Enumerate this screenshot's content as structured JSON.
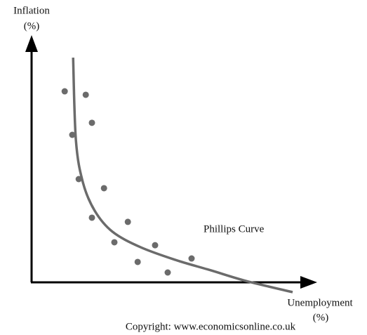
{
  "chart_data": {
    "type": "scatter",
    "x_label": [
      "Unemployment",
      "(%)"
    ],
    "y_label": [
      "Inflation",
      "(%)"
    ],
    "xlim": [
      0,
      100
    ],
    "ylim": [
      0,
      100
    ],
    "points": {
      "color": "#6b6b6b",
      "x": [
        11.8,
        19.3,
        21.5,
        14.5,
        16.8,
        25.8,
        21.5,
        34.3,
        29.5,
        44.0,
        37.8,
        57.0,
        48.5
      ],
      "values": [
        77.7,
        76.3,
        64.9,
        60.0,
        42.0,
        38.3,
        26.3,
        24.6,
        16.3,
        15.1,
        8.3,
        9.7,
        4.0
      ]
    },
    "curve": {
      "name": "Phillips Curve",
      "color": "#6b6b6b",
      "x": [
        14.8,
        15.8,
        18.3,
        22.5,
        28.8,
        38.8,
        51.3,
        63.8,
        76.3,
        93.0
      ],
      "values": [
        91.4,
        57.7,
        40.6,
        29.1,
        20.6,
        14.3,
        9.1,
        4.9,
        0.6,
        -4.0
      ]
    }
  },
  "footer": "Copyright: www.economicsonline.co.uk"
}
